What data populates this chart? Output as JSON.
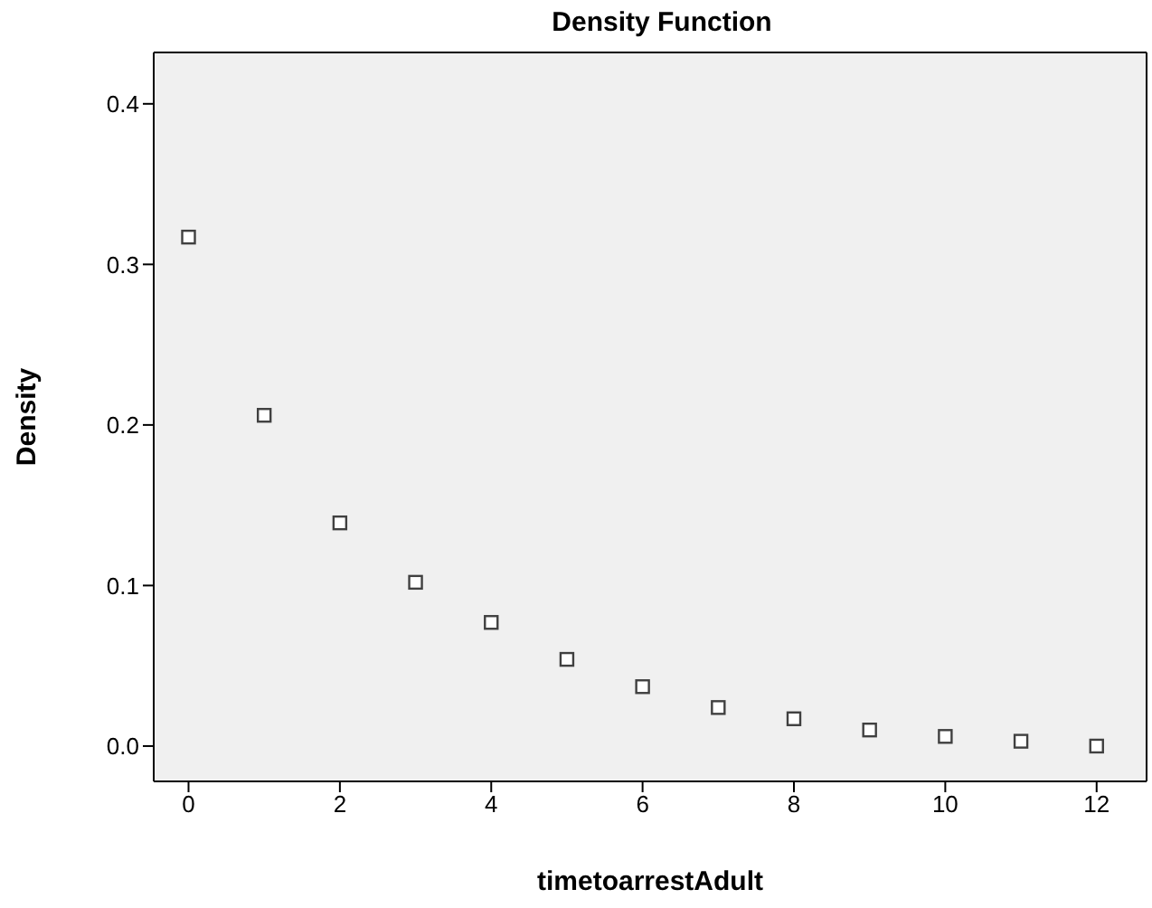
{
  "chart_data": {
    "type": "scatter",
    "title": "Density Function",
    "xlabel": "timetoarrestAdult",
    "ylabel": "Density",
    "x": [
      0,
      1,
      2,
      3,
      4,
      5,
      6,
      7,
      8,
      9,
      10,
      11,
      12
    ],
    "values": [
      0.317,
      0.206,
      0.139,
      0.102,
      0.077,
      0.054,
      0.037,
      0.024,
      0.017,
      0.01,
      0.006,
      0.003,
      0.0
    ],
    "color": "#404040",
    "marker": "square",
    "xlim": [
      -0.46,
      12.66
    ],
    "xticks": [
      0,
      2,
      4,
      6,
      8,
      10,
      12
    ],
    "ylim": [
      -0.022,
      0.432
    ],
    "yticks": [
      {
        "value": 0,
        "label": "0.0"
      },
      {
        "value": 0.1,
        "label": "0.1"
      },
      {
        "value": 0.2,
        "label": "0.2"
      },
      {
        "value": 0.3,
        "label": "0.3"
      },
      {
        "value": 0.4,
        "label": "0.4"
      }
    ],
    "grid": false
  }
}
